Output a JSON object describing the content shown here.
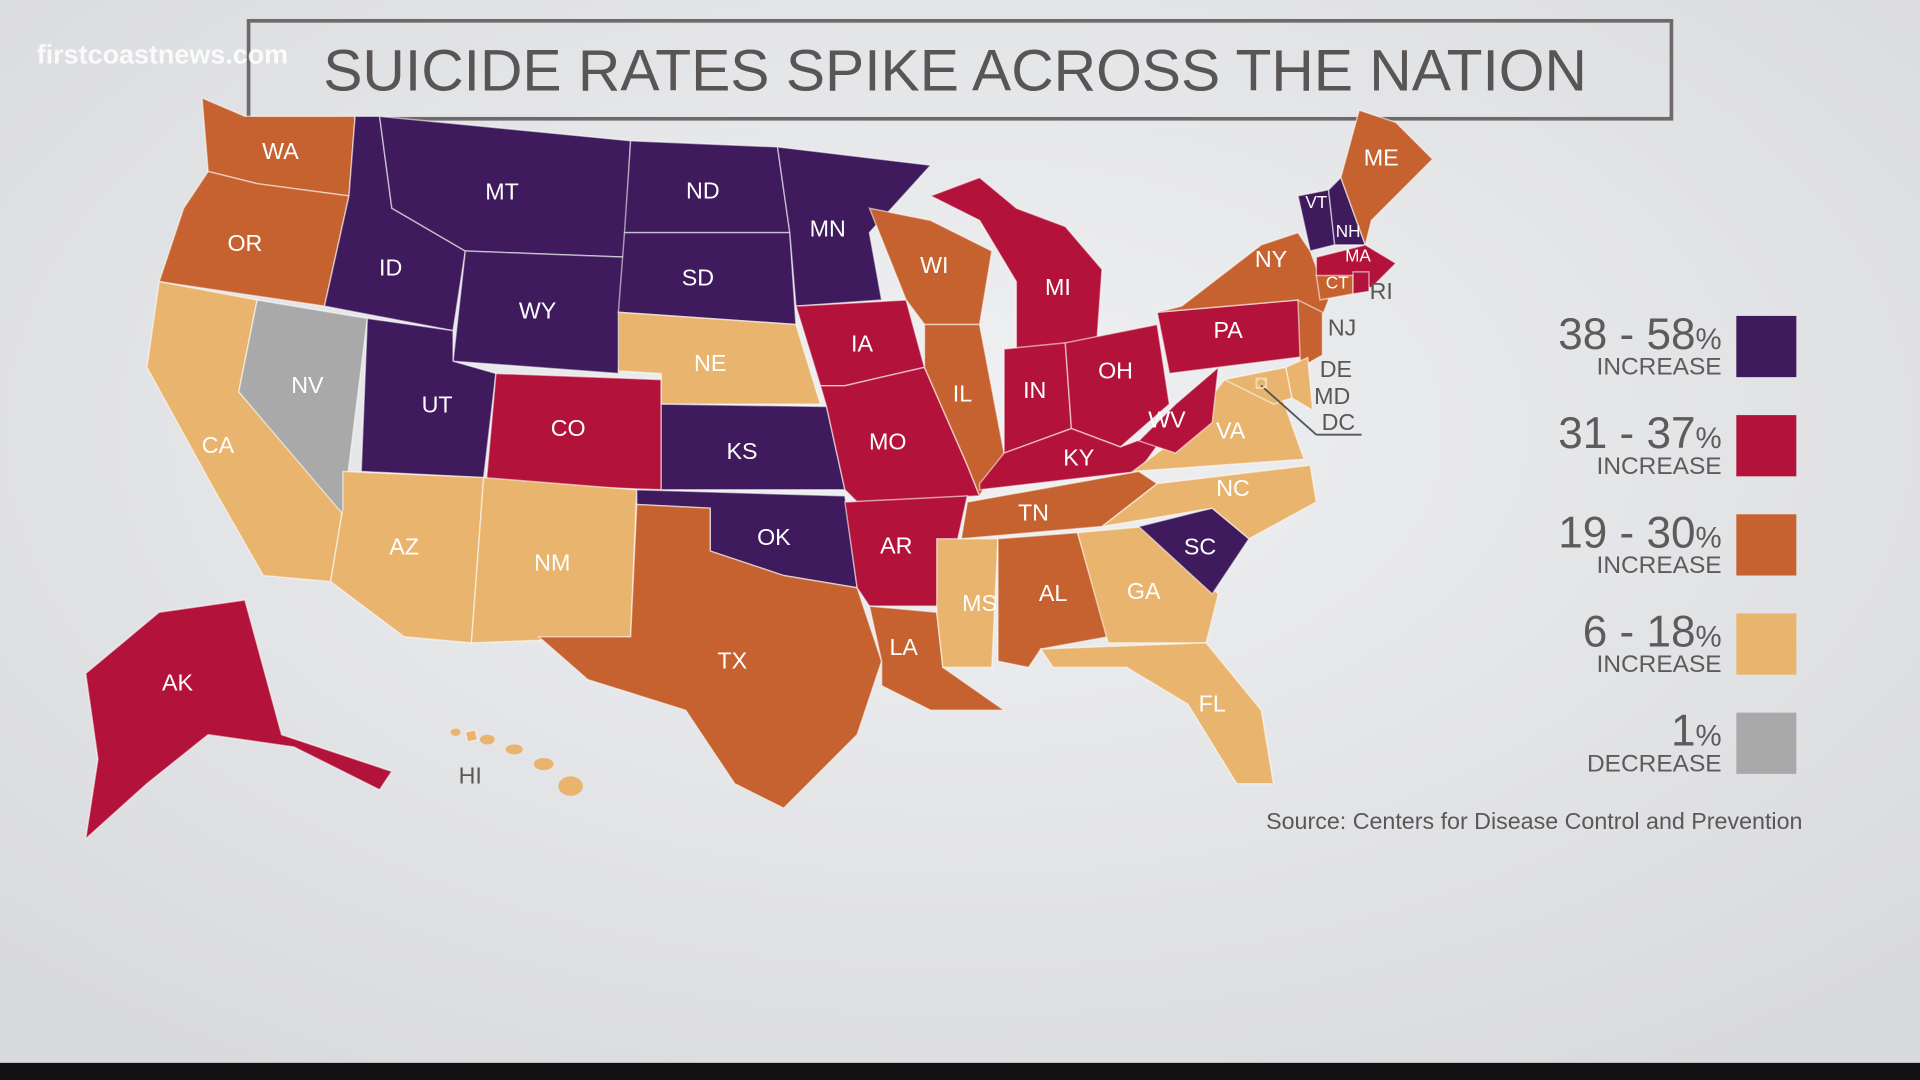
{
  "watermark": "firstcoastnews.com",
  "title": "SUICIDE RATES SPIKE ACROSS THE NATION",
  "source": "Source: Centers for Disease Control and Prevention",
  "legend": [
    {
      "id": "c1",
      "range": "38 - 58",
      "unit": "%",
      "label": "INCREASE",
      "color": "#3f1a5c"
    },
    {
      "id": "c2",
      "range": "31 - 37",
      "unit": "%",
      "label": "INCREASE",
      "color": "#b3133a"
    },
    {
      "id": "c3",
      "range": "19 - 30",
      "unit": "%",
      "label": "INCREASE",
      "color": "#c6622f"
    },
    {
      "id": "c4",
      "range": "6 - 18",
      "unit": "%",
      "label": "INCREASE",
      "color": "#e9b46d"
    },
    {
      "id": "c5",
      "range": "1",
      "unit": "%",
      "label": "DECREASE",
      "color": "#a9a9a9"
    }
  ],
  "states": [
    {
      "abbr": "WA",
      "cat": "c3"
    },
    {
      "abbr": "OR",
      "cat": "c3"
    },
    {
      "abbr": "CA",
      "cat": "c4"
    },
    {
      "abbr": "NV",
      "cat": "c5"
    },
    {
      "abbr": "ID",
      "cat": "c1"
    },
    {
      "abbr": "MT",
      "cat": "c1"
    },
    {
      "abbr": "WY",
      "cat": "c1"
    },
    {
      "abbr": "UT",
      "cat": "c1"
    },
    {
      "abbr": "AZ",
      "cat": "c4"
    },
    {
      "abbr": "CO",
      "cat": "c2"
    },
    {
      "abbr": "NM",
      "cat": "c4"
    },
    {
      "abbr": "ND",
      "cat": "c1"
    },
    {
      "abbr": "SD",
      "cat": "c1"
    },
    {
      "abbr": "NE",
      "cat": "c4"
    },
    {
      "abbr": "KS",
      "cat": "c1"
    },
    {
      "abbr": "OK",
      "cat": "c1"
    },
    {
      "abbr": "TX",
      "cat": "c3"
    },
    {
      "abbr": "MN",
      "cat": "c1"
    },
    {
      "abbr": "IA",
      "cat": "c2"
    },
    {
      "abbr": "MO",
      "cat": "c2"
    },
    {
      "abbr": "AR",
      "cat": "c2"
    },
    {
      "abbr": "LA",
      "cat": "c3"
    },
    {
      "abbr": "WI",
      "cat": "c3"
    },
    {
      "abbr": "IL",
      "cat": "c3"
    },
    {
      "abbr": "MI",
      "cat": "c2"
    },
    {
      "abbr": "IN",
      "cat": "c2"
    },
    {
      "abbr": "OH",
      "cat": "c2"
    },
    {
      "abbr": "KY",
      "cat": "c2"
    },
    {
      "abbr": "TN",
      "cat": "c3"
    },
    {
      "abbr": "MS",
      "cat": "c4"
    },
    {
      "abbr": "AL",
      "cat": "c3"
    },
    {
      "abbr": "GA",
      "cat": "c4"
    },
    {
      "abbr": "FL",
      "cat": "c4"
    },
    {
      "abbr": "SC",
      "cat": "c1"
    },
    {
      "abbr": "NC",
      "cat": "c4"
    },
    {
      "abbr": "VA",
      "cat": "c4"
    },
    {
      "abbr": "WV",
      "cat": "c2"
    },
    {
      "abbr": "PA",
      "cat": "c2"
    },
    {
      "abbr": "NY",
      "cat": "c3"
    },
    {
      "abbr": "VT",
      "cat": "c1"
    },
    {
      "abbr": "NH",
      "cat": "c1"
    },
    {
      "abbr": "ME",
      "cat": "c3"
    },
    {
      "abbr": "MA",
      "cat": "c2"
    },
    {
      "abbr": "CT",
      "cat": "c3"
    },
    {
      "abbr": "RI",
      "cat": "c2"
    },
    {
      "abbr": "NJ",
      "cat": "c3"
    },
    {
      "abbr": "DE",
      "cat": "c4"
    },
    {
      "abbr": "MD",
      "cat": "c4"
    },
    {
      "abbr": "DC",
      "cat": "c4"
    },
    {
      "abbr": "AK",
      "cat": "c2"
    },
    {
      "abbr": "HI",
      "cat": "c4"
    }
  ]
}
